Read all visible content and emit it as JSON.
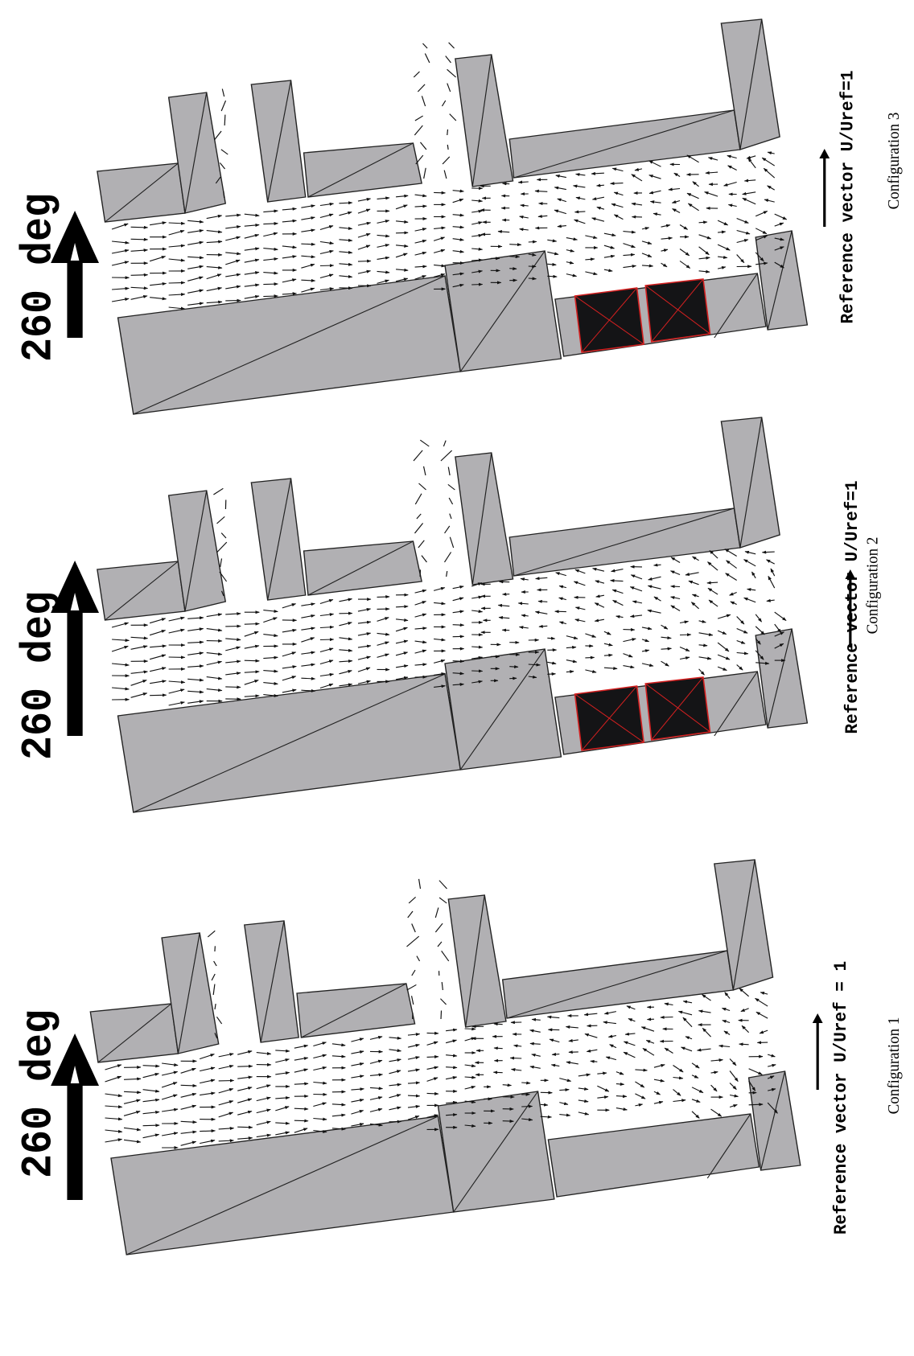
{
  "panels": [
    {
      "direction": "260 deg",
      "reference": "Reference vector U/Uref=1",
      "caption": "Configuration 3"
    },
    {
      "direction": "260 deg",
      "reference": "Reference vector U/Uref=1",
      "caption": "Configuration 2"
    },
    {
      "direction": "260 deg",
      "reference": "Reference vector U/Uref = 1",
      "caption": "Configuration 1"
    }
  ]
}
